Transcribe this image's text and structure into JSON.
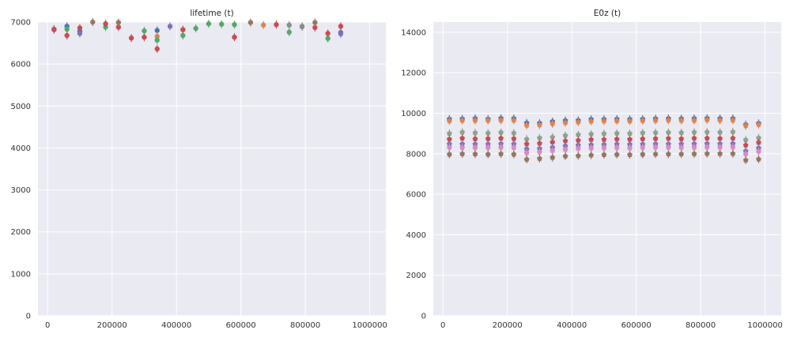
{
  "chart_data": [
    {
      "type": "scatter",
      "title": "lifetime (t)",
      "xlabel": "",
      "ylabel": "",
      "xlim": [
        -30000,
        1050000
      ],
      "ylim": [
        0,
        7000
      ],
      "xticks": [
        0,
        200000,
        400000,
        600000,
        800000,
        1000000
      ],
      "xtick_labels": [
        "0",
        "200000",
        "400000",
        "600000",
        "800000",
        "1000000"
      ],
      "yticks": [
        0,
        1000,
        2000,
        3000,
        4000,
        5000,
        6000,
        7000
      ],
      "ytick_labels": [
        "0",
        "1000",
        "2000",
        "3000",
        "4000",
        "5000",
        "6000",
        "7000"
      ],
      "grid": true,
      "legend": "none",
      "series": [
        {
          "color": "#4c72b0",
          "marker": "circle",
          "points": [
            [
              20000,
              6830
            ],
            [
              60000,
              6900
            ],
            [
              100000,
              6780
            ],
            [
              340000,
              6800
            ],
            [
              910000,
              6750
            ]
          ]
        },
        {
          "color": "#dd8452",
          "marker": "circle",
          "points": [
            [
              340000,
              6660
            ],
            [
              670000,
              6930
            ]
          ]
        },
        {
          "color": "#55a868",
          "marker": "circle",
          "points": [
            [
              60000,
              6830
            ],
            [
              180000,
              6880
            ],
            [
              300000,
              6790
            ],
            [
              340000,
              6570
            ],
            [
              420000,
              6680
            ],
            [
              460000,
              6850
            ],
            [
              500000,
              6960
            ],
            [
              540000,
              6950
            ],
            [
              580000,
              6940
            ],
            [
              750000,
              6760
            ],
            [
              870000,
              6610
            ]
          ]
        },
        {
          "color": "#c44e52",
          "marker": "circle",
          "points": [
            [
              20000,
              6820
            ],
            [
              60000,
              6680
            ],
            [
              100000,
              6860
            ],
            [
              180000,
              6960
            ],
            [
              220000,
              6880
            ],
            [
              260000,
              6620
            ],
            [
              300000,
              6640
            ],
            [
              340000,
              6360
            ],
            [
              420000,
              6820
            ],
            [
              580000,
              6640
            ],
            [
              710000,
              6940
            ],
            [
              830000,
              6870
            ],
            [
              870000,
              6730
            ],
            [
              910000,
              6900
            ]
          ]
        },
        {
          "color": "#8172b3",
          "marker": "circle",
          "points": [
            [
              100000,
              6730
            ],
            [
              380000,
              6900
            ],
            [
              790000,
              6890
            ],
            [
              910000,
              6720
            ]
          ]
        },
        {
          "color": "#937860",
          "marker": "circle",
          "points": [
            [
              140000,
              7000
            ],
            [
              220000,
              6990
            ],
            [
              630000,
              6990
            ],
            [
              830000,
              6990
            ]
          ]
        },
        {
          "color": "#8c8c8c",
          "marker": "circle",
          "points": [
            [
              750000,
              6930
            ],
            [
              790000,
              6900
            ]
          ]
        }
      ]
    },
    {
      "type": "scatter",
      "title": "E0z (t)",
      "xlabel": "",
      "ylabel": "",
      "xlim": [
        -30000,
        1050000
      ],
      "ylim": [
        0,
        14500
      ],
      "xticks": [
        0,
        200000,
        400000,
        600000,
        800000,
        1000000
      ],
      "xtick_labels": [
        "0",
        "200000",
        "400000",
        "600000",
        "800000",
        "1000000"
      ],
      "yticks": [
        0,
        2000,
        4000,
        6000,
        8000,
        10000,
        12000,
        14000
      ],
      "ytick_labels": [
        "0",
        "2000",
        "4000",
        "6000",
        "8000",
        "10000",
        "12000",
        "14000"
      ],
      "grid": true,
      "legend": "none",
      "x": [
        20000,
        60000,
        100000,
        140000,
        180000,
        220000,
        260000,
        300000,
        340000,
        380000,
        420000,
        460000,
        500000,
        540000,
        580000,
        620000,
        660000,
        700000,
        740000,
        780000,
        820000,
        860000,
        900000,
        940000,
        980000
      ],
      "series": [
        {
          "color": "#4c72b0",
          "marker": "pentagon",
          "values": [
            9710,
            9720,
            9740,
            9710,
            9750,
            9740,
            9520,
            9510,
            9590,
            9640,
            9650,
            9700,
            9700,
            9710,
            9700,
            9710,
            9730,
            9740,
            9730,
            9740,
            9750,
            9740,
            9740,
            9440,
            9500
          ]
        },
        {
          "color": "#dd8452",
          "marker": "pentagon",
          "values": [
            9620,
            9640,
            9640,
            9640,
            9650,
            9650,
            9400,
            9420,
            9480,
            9530,
            9560,
            9600,
            9610,
            9620,
            9610,
            9630,
            9640,
            9650,
            9640,
            9640,
            9670,
            9650,
            9650,
            9380,
            9440
          ]
        },
        {
          "color": "#8da38d",
          "marker": "pentagon",
          "values": [
            9000,
            9060,
            9030,
            9020,
            9050,
            9020,
            8720,
            8780,
            8820,
            8900,
            8940,
            8970,
            8990,
            9010,
            9000,
            9030,
            9040,
            9050,
            9040,
            9060,
            9070,
            9060,
            9080,
            8680,
            8780
          ]
        },
        {
          "color": "#c44e52",
          "marker": "pentagon",
          "values": [
            8720,
            8760,
            8730,
            8740,
            8760,
            8740,
            8480,
            8510,
            8570,
            8630,
            8660,
            8700,
            8700,
            8720,
            8710,
            8730,
            8740,
            8750,
            8730,
            8760,
            8760,
            8750,
            8760,
            8420,
            8550
          ]
        },
        {
          "color": "#8172b3",
          "marker": "pentagon",
          "values": [
            8480,
            8480,
            8470,
            8470,
            8490,
            8480,
            8230,
            8250,
            8310,
            8380,
            8420,
            8440,
            8450,
            8470,
            8460,
            8470,
            8480,
            8480,
            8480,
            8490,
            8500,
            8490,
            8500,
            8130,
            8280
          ]
        },
        {
          "color": "#da8bc3",
          "marker": "pentagon",
          "values": [
            8310,
            8300,
            8290,
            8300,
            8310,
            8300,
            8040,
            8080,
            8150,
            8200,
            8250,
            8270,
            8280,
            8290,
            8280,
            8300,
            8310,
            8310,
            8300,
            8310,
            8320,
            8310,
            8320,
            7980,
            8110
          ]
        },
        {
          "color": "#937860",
          "marker": "pentagon",
          "values": [
            7970,
            7990,
            7980,
            7970,
            7990,
            7970,
            7720,
            7760,
            7810,
            7880,
            7900,
            7930,
            7950,
            7960,
            7950,
            7970,
            7980,
            7980,
            7980,
            7990,
            8000,
            8000,
            8000,
            7680,
            7730
          ]
        }
      ]
    }
  ]
}
